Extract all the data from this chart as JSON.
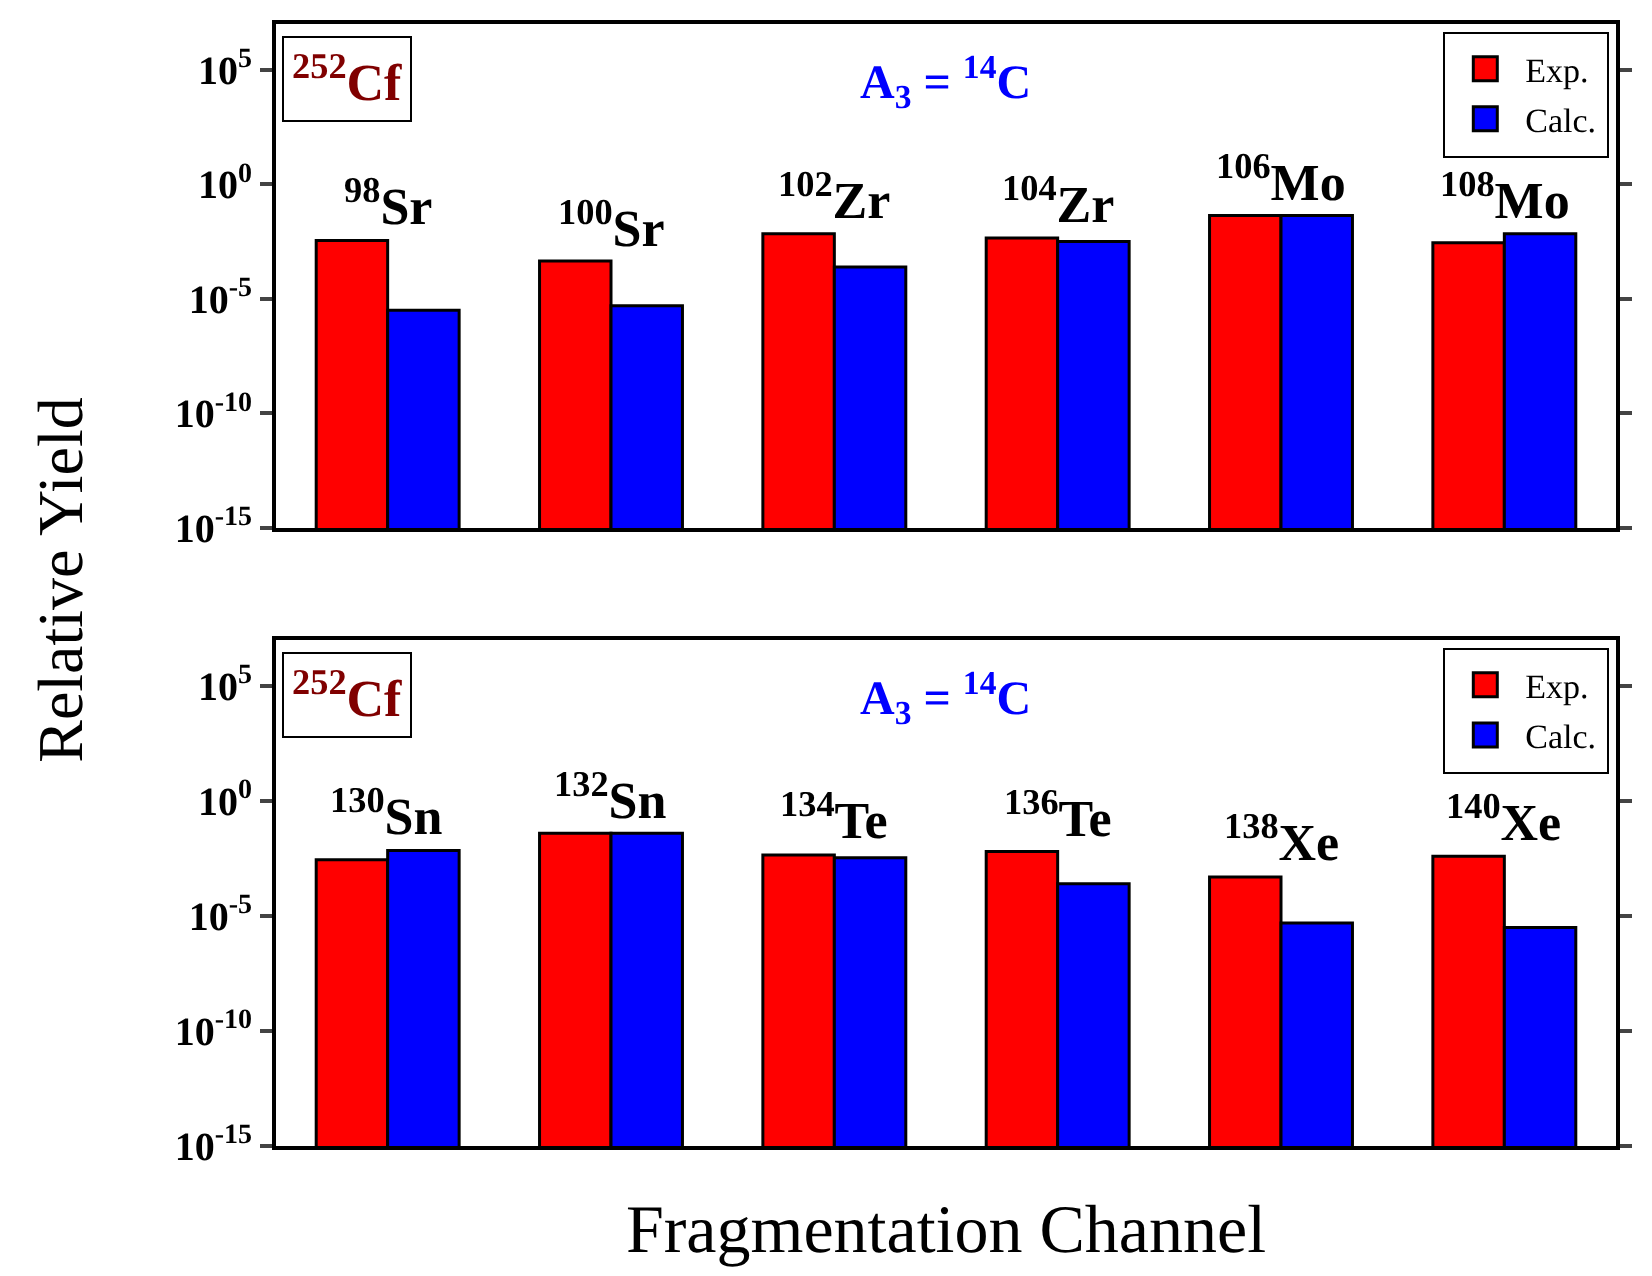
{
  "chart_data": [
    {
      "type": "bar",
      "ylabel": "Relative Yield",
      "categories": [
        "$^{98}$Sr",
        "$^{100}$Sr",
        "$^{102}$Zr",
        "$^{104}$Zr",
        "$^{106}$Mo",
        "$^{108}$Mo"
      ],
      "series": [
        {
          "name": "Exp.",
          "color": "#ff0000",
          "values": [
            0.0035,
            0.00045,
            0.007,
            0.0045,
            0.044,
            0.0028
          ]
        },
        {
          "name": "Calc.",
          "color": "#0000ff",
          "values": [
            3.2e-06,
            5e-06,
            0.00025,
            0.0032,
            0.044,
            0.007
          ]
        }
      ],
      "annotations": [
        "$^{252}$Cf",
        "A$_{3}$ = $^{14}$C"
      ],
      "log": true,
      "ylim": [
        1e-15,
        10000000.0
      ],
      "yticks": [
        {
          "value": 1e-15,
          "label": "10$^{-15}$"
        },
        {
          "value": 1e-10,
          "label": "10$^{-10}$"
        },
        {
          "value": 1e-05,
          "label": "10$^{-5}$"
        },
        {
          "value": 1,
          "label": "10$^{0}$"
        },
        {
          "value": 100000.0,
          "label": "10$^{5}$"
        }
      ],
      "legend": "top right",
      "grid": false
    },
    {
      "type": "bar",
      "xlabel": "Fragmentation Channel",
      "categories": [
        "$^{130}$Sn",
        "$^{132}$Sn",
        "$^{134}$Te",
        "$^{136}$Te",
        "$^{138}$Xe",
        "$^{140}$Xe"
      ],
      "series": [
        {
          "name": "Exp.",
          "color": "#ff0000",
          "values": [
            0.0028,
            0.04,
            0.0045,
            0.0063,
            0.0005,
            0.004
          ]
        },
        {
          "name": "Calc.",
          "color": "#0000ff",
          "values": [
            0.007,
            0.04,
            0.0034,
            0.00025,
            5e-06,
            3.2e-06
          ]
        }
      ],
      "annotations": [
        "$^{252}$Cf",
        "A$_{3}$ = $^{14}$C"
      ],
      "log": true,
      "ylim": [
        1e-15,
        10000000.0
      ],
      "yticks": [
        {
          "value": 1e-15,
          "label": "10$^{-15}$"
        },
        {
          "value": 1e-10,
          "label": "10$^{-10}$"
        },
        {
          "value": 1e-05,
          "label": "10$^{-5}$"
        },
        {
          "value": 1,
          "label": "10$^{0}$"
        },
        {
          "value": 100000.0,
          "label": "10$^{5}$"
        }
      ],
      "legend": "top right",
      "grid": false
    }
  ]
}
